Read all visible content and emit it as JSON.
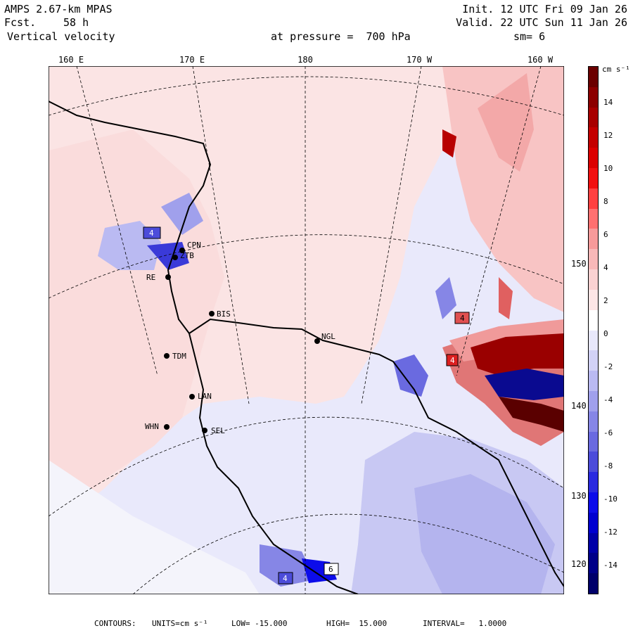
{
  "header": {
    "model": "AMPS 2.67-km MPAS",
    "forecast_label": "Fcst.",
    "forecast_hours": "58 h",
    "variable": "Vertical velocity",
    "init": "Init. 12 UTC Fri 09 Jan 26",
    "valid": "Valid. 22 UTC Sun 11 Jan 26",
    "level": "at pressure =  700 hPa",
    "smoothing": "sm= 6"
  },
  "map": {
    "lon_labels": [
      "160 E",
      "170 E",
      "180",
      "170 W",
      "160 W"
    ],
    "lat_labels": [
      "150 W",
      "140 W",
      "130 W",
      "120 W"
    ],
    "stations": [
      "CPN",
      "ZTB",
      "RE",
      "BIS",
      "NGL",
      "TDM",
      "LAN",
      "WHN",
      "SEL"
    ],
    "boxed_values": [
      "4",
      "4",
      "4",
      "6",
      "4"
    ]
  },
  "colorbar": {
    "units": "cm s⁻¹",
    "tick_labels": [
      "14",
      "12",
      "10",
      "8",
      "6",
      "4",
      "2",
      "0",
      "-2",
      "-4",
      "-6",
      "-8",
      "-10",
      "-12",
      "-14"
    ],
    "colors": [
      "#6b0000",
      "#8c0000",
      "#a80000",
      "#c40000",
      "#dc0000",
      "#f21010",
      "#ff4040",
      "#ff7070",
      "#f79a9a",
      "#f8b8b8",
      "#fad2d2",
      "#fde6e6",
      "#ffffff",
      "#e8e8fb",
      "#d2d2f6",
      "#babaf2",
      "#a0a0ec",
      "#8686e6",
      "#6a6ae0",
      "#4c4cda",
      "#2a2ae0",
      "#0c0cea",
      "#0000d0",
      "#0000a8",
      "#000088",
      "#00006a"
    ]
  },
  "footer": {
    "contours_label": "CONTOURS:",
    "units_label": "UNITS=cm s⁻¹",
    "low": "LOW= -15.000",
    "high": "HIGH=  15.000",
    "interval": "INTERVAL=   1.0000"
  }
}
